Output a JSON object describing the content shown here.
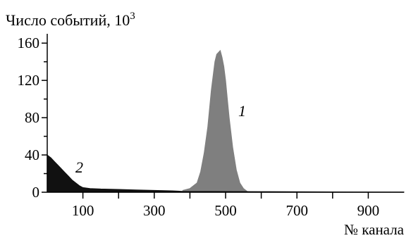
{
  "chart_data": {
    "type": "area",
    "ylabel": "Число событий, 10",
    "ylabel_sup": "3",
    "xlabel": "№ канала",
    "xlim": [
      0,
      1000
    ],
    "ylim": [
      0,
      170
    ],
    "y_ticks": [
      0,
      40,
      80,
      120,
      160
    ],
    "y_minor_ticks": [
      20,
      60,
      100,
      140
    ],
    "x_ticks": [
      100,
      300,
      500,
      700,
      900
    ],
    "x_minor_ticks": [
      200,
      400,
      600,
      800
    ],
    "grid": false,
    "legend": "none",
    "series": [
      {
        "label": "1",
        "color": "#7f7f7f",
        "x": [
          380,
          400,
          420,
          430,
          440,
          450,
          460,
          470,
          475,
          480,
          485,
          490,
          495,
          500,
          505,
          510,
          520,
          530,
          540,
          550,
          560,
          570
        ],
        "values": [
          2,
          4,
          10,
          22,
          42,
          70,
          110,
          140,
          148,
          150,
          152,
          145,
          135,
          120,
          100,
          80,
          48,
          24,
          10,
          4,
          1,
          0
        ]
      },
      {
        "label": "2",
        "color": "#111111",
        "x": [
          0,
          10,
          20,
          30,
          40,
          50,
          60,
          70,
          80,
          90,
          100,
          120,
          150,
          200,
          250,
          300,
          350,
          380,
          600,
          800,
          1000
        ],
        "values": [
          40,
          37,
          33,
          29,
          25,
          21,
          17,
          13,
          10,
          7,
          5,
          4,
          3.5,
          3,
          2.5,
          2,
          1.5,
          1,
          0.7,
          0.4,
          0.2
        ]
      }
    ]
  }
}
